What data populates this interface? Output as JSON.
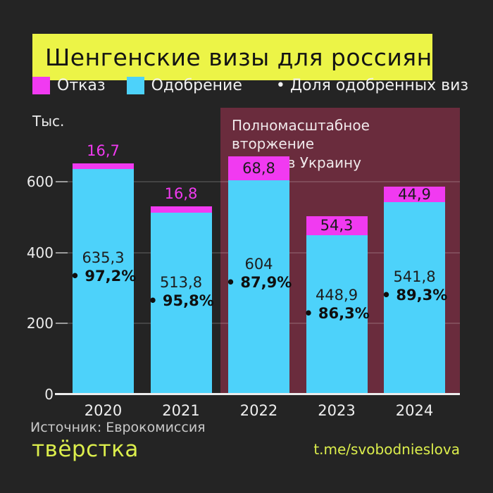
{
  "header": {
    "title": "Шенгенские визы для россиян"
  },
  "legend": {
    "refusal_label": "Отказ",
    "approval_label": "Одобрение",
    "share_note": "• Доля одобренных виз"
  },
  "annotation": {
    "text": "Полномасштабное вторжение\nРоссии в Украину"
  },
  "axis": {
    "unit_label": "Тыс.",
    "ticks": [
      0,
      200,
      400,
      600
    ]
  },
  "chart_data": {
    "type": "bar",
    "stacked": true,
    "title": "Шенгенские визы для россиян",
    "ylabel": "Тыс.",
    "ylim": [
      0,
      700
    ],
    "grid": "horizontal at 200/400/600",
    "legend_position": "top",
    "categories": [
      "2020",
      "2021",
      "2022",
      "2023",
      "2024"
    ],
    "series": [
      {
        "name": "Одобрение",
        "values": [
          635.3,
          513.8,
          604,
          448.9,
          541.8
        ],
        "labels": [
          "635,3",
          "513,8",
          "604",
          "448,9",
          "541,8"
        ]
      },
      {
        "name": "Отказ",
        "values": [
          16.7,
          16.8,
          68.8,
          54.3,
          44.9
        ],
        "labels": [
          "16,7",
          "16,8",
          "68,8",
          "54,3",
          "44,9"
        ]
      }
    ],
    "share_labels": [
      "• 97,2%",
      "• 95,8%",
      "• 87,9%",
      "• 86,3%",
      "• 89,3%"
    ],
    "annotation_span_categories": [
      "2022",
      "2023",
      "2024"
    ]
  },
  "colors": {
    "background": "#242424",
    "title_bg": "#ecf447",
    "refusal": "#f13af1",
    "approval": "#4dd2fa",
    "annotation_bg": "#6a2c3d",
    "brand_green": "#dcee4c"
  },
  "footer": {
    "source": "Источник: Еврокомиссия",
    "logo": "твёрстка",
    "link": "t.me/svobodnieslova"
  }
}
